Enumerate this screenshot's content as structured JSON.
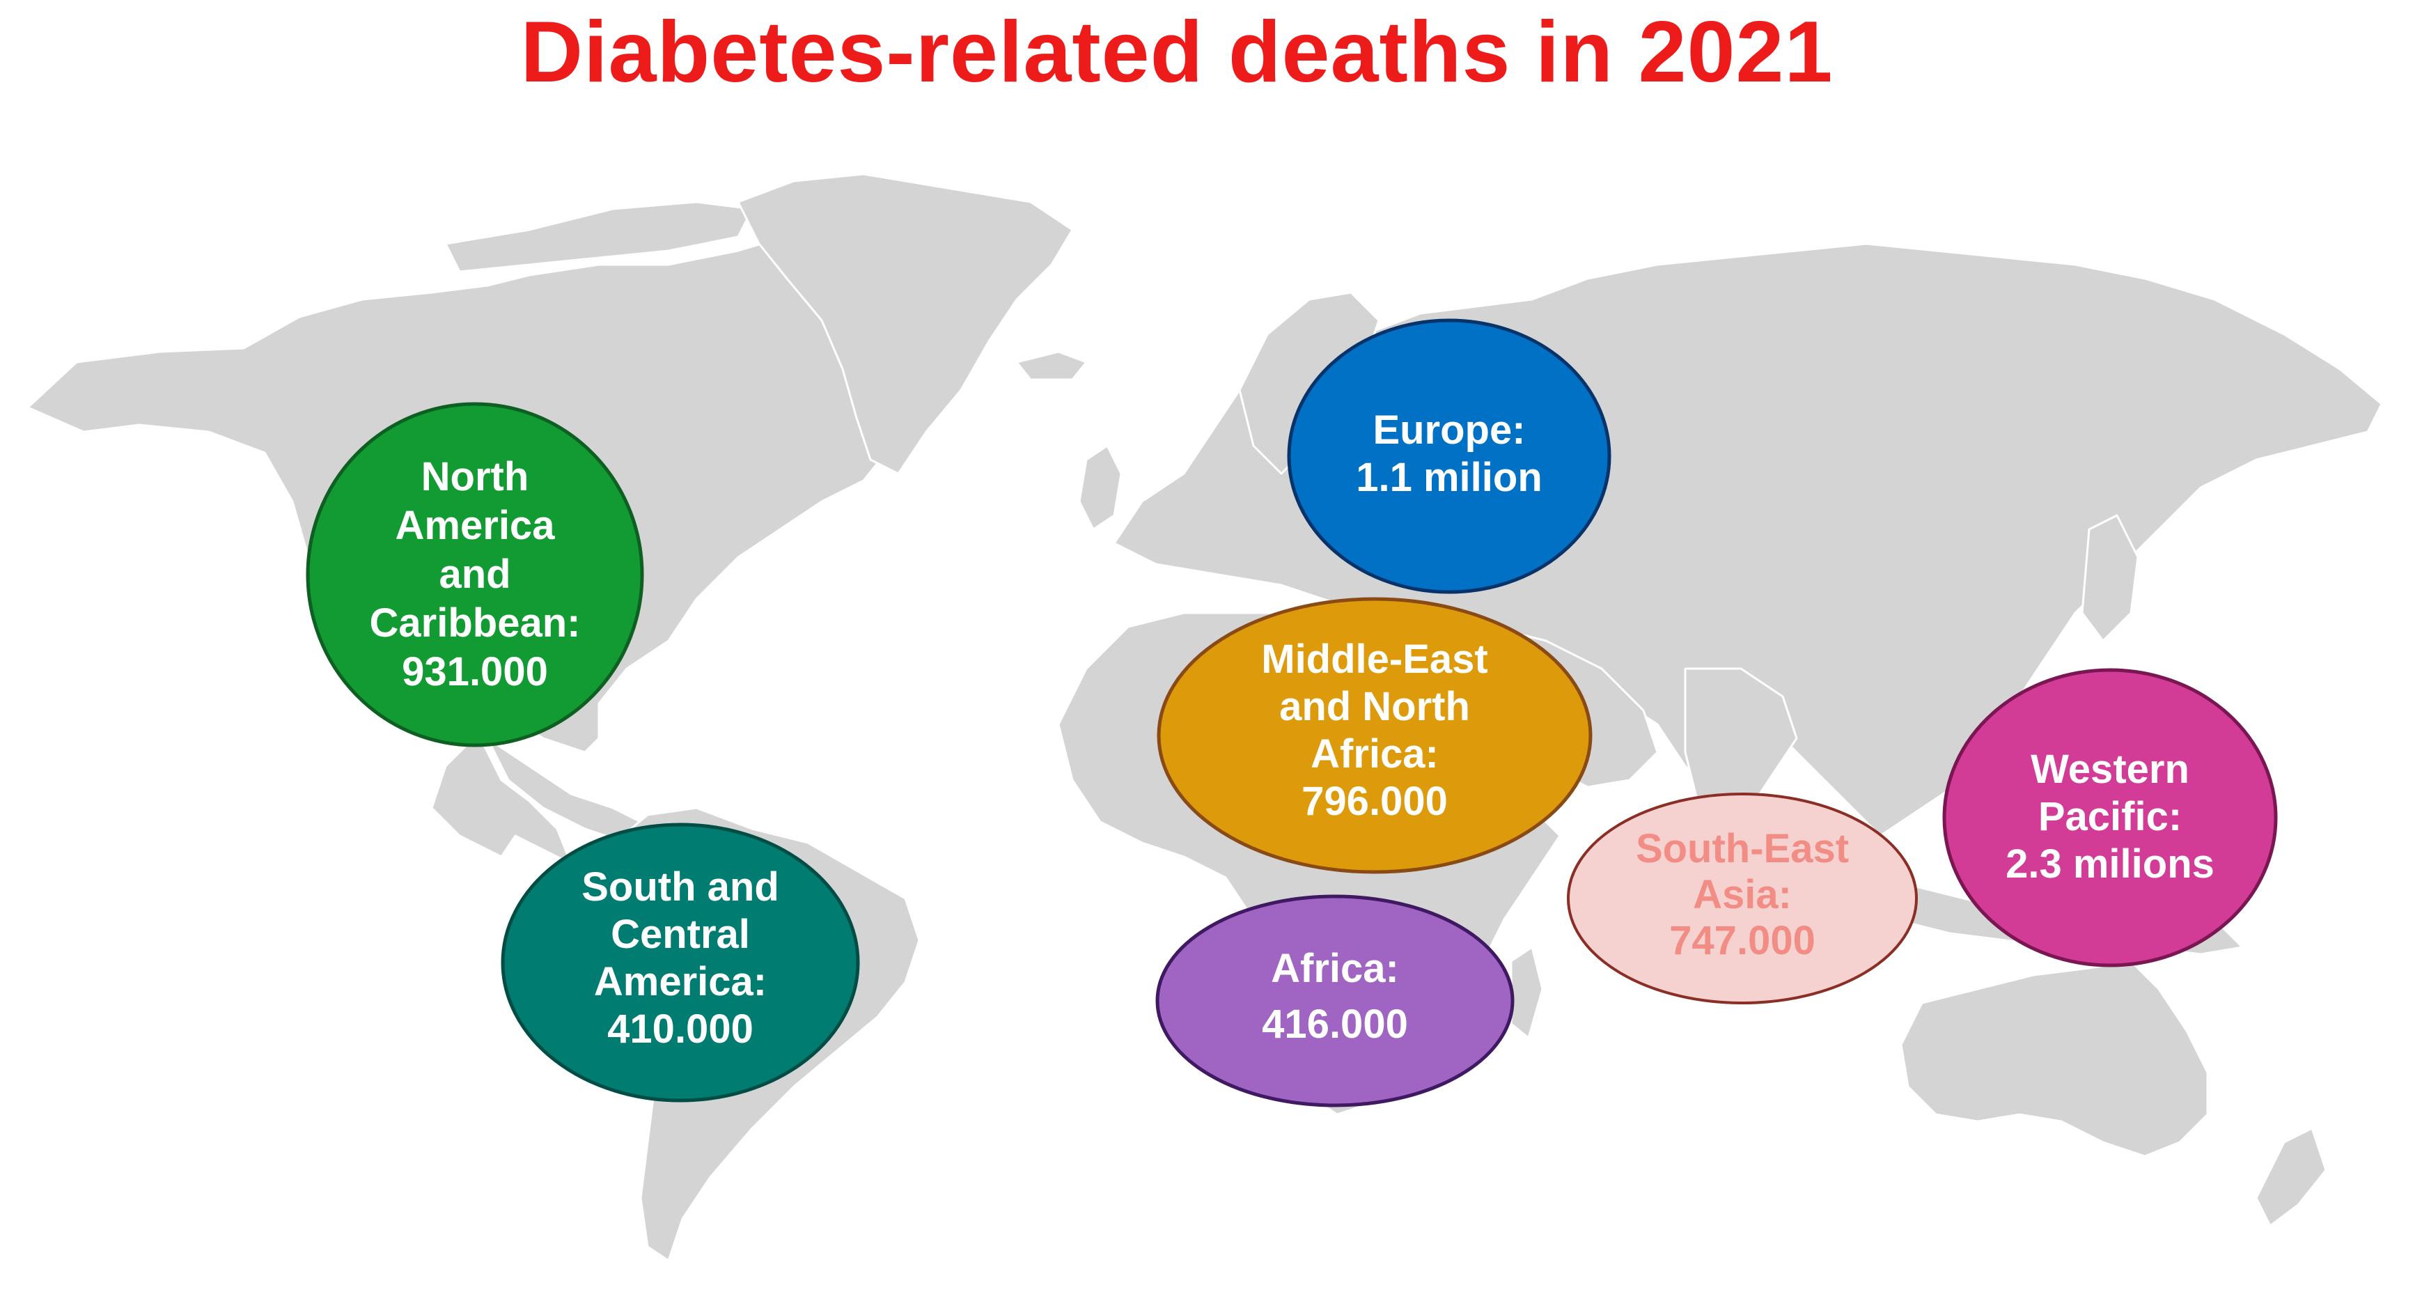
{
  "title": "Diabetes-related deaths in 2021",
  "title_color": "#ee1b1b",
  "map_color": "#d4d4d4",
  "regions": [
    {
      "id": "north-america-caribbean",
      "lines": [
        "North",
        "America",
        "and",
        "Caribbean:",
        "931.000"
      ],
      "value": 931000,
      "fill": "#129b32",
      "stroke": "#0d5f22",
      "text_color": "#ffffff"
    },
    {
      "id": "south-central-america",
      "lines": [
        "South and",
        "Central",
        "America:",
        "410.000"
      ],
      "value": 410000,
      "fill": "#007c70",
      "stroke": "#004d45",
      "text_color": "#ffffff"
    },
    {
      "id": "europe",
      "lines": [
        "Europe:",
        "1.1 milion"
      ],
      "value": 1100000,
      "fill": "#0071c5",
      "stroke": "#06336a",
      "text_color": "#ffffff"
    },
    {
      "id": "middle-east-north-africa",
      "lines": [
        "Middle-East",
        "and North",
        "Africa:",
        "796.000"
      ],
      "value": 796000,
      "fill": "#dd9a0a",
      "stroke": "#8a4a14",
      "text_color": "#ffffff"
    },
    {
      "id": "africa",
      "lines": [
        "Africa:",
        "416.000"
      ],
      "value": 416000,
      "fill": "#a064c3",
      "stroke": "#3f1a63",
      "text_color": "#ffffff"
    },
    {
      "id": "south-east-asia",
      "lines": [
        "South-East",
        "Asia:",
        "747.000"
      ],
      "value": 747000,
      "fill": "#f5d2d0",
      "stroke": "#8a2e26",
      "text_color": "#f28d86"
    },
    {
      "id": "western-pacific",
      "lines": [
        "Western",
        "Pacific:",
        "2.3 milions"
      ],
      "value": 2300000,
      "fill": "#d23b96",
      "stroke": "#7a1752",
      "text_color": "#ffffff"
    }
  ]
}
